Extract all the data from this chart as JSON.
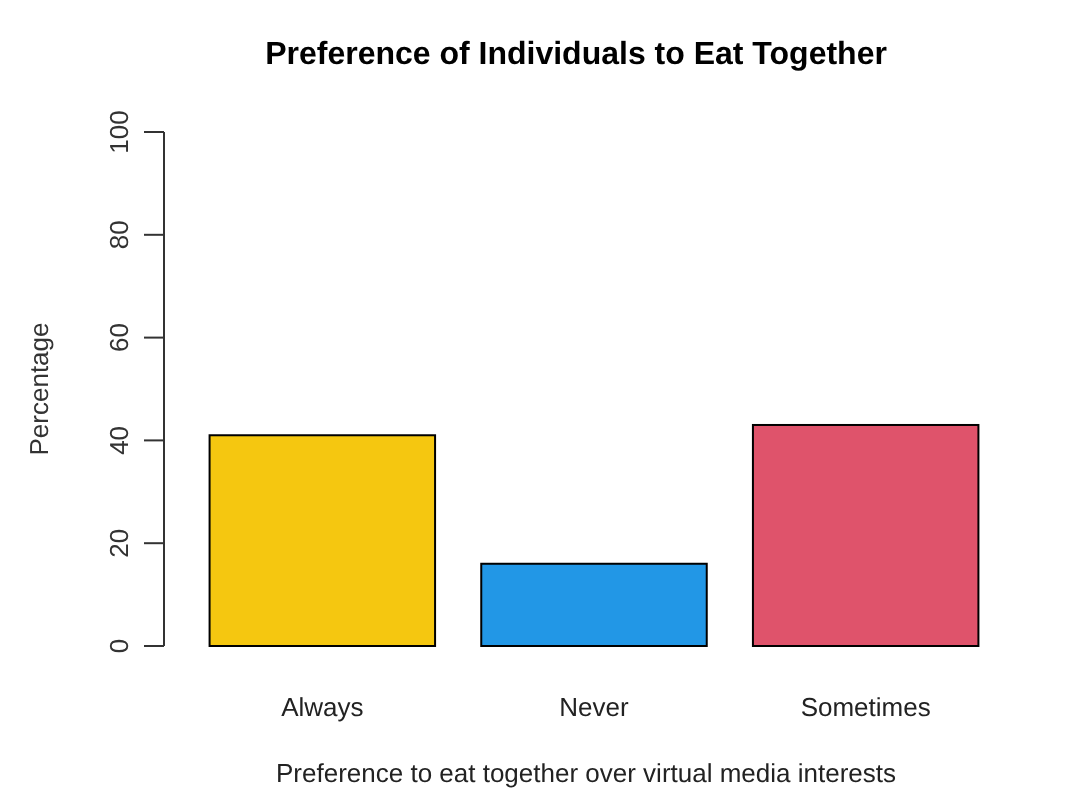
{
  "chart_data": {
    "type": "bar",
    "title": "Preference of Individuals to Eat Together",
    "xlabel": "Preference to eat together over virtual media interests",
    "ylabel": "Percentage",
    "categories": [
      "Always",
      "Never",
      "Sometimes"
    ],
    "values": [
      41,
      16,
      43
    ],
    "colors": [
      "#f5c710",
      "#2297e6",
      "#df536b"
    ],
    "ylim": [
      0,
      100
    ],
    "yticks": [
      0,
      20,
      40,
      60,
      80,
      100
    ],
    "grid": false
  }
}
